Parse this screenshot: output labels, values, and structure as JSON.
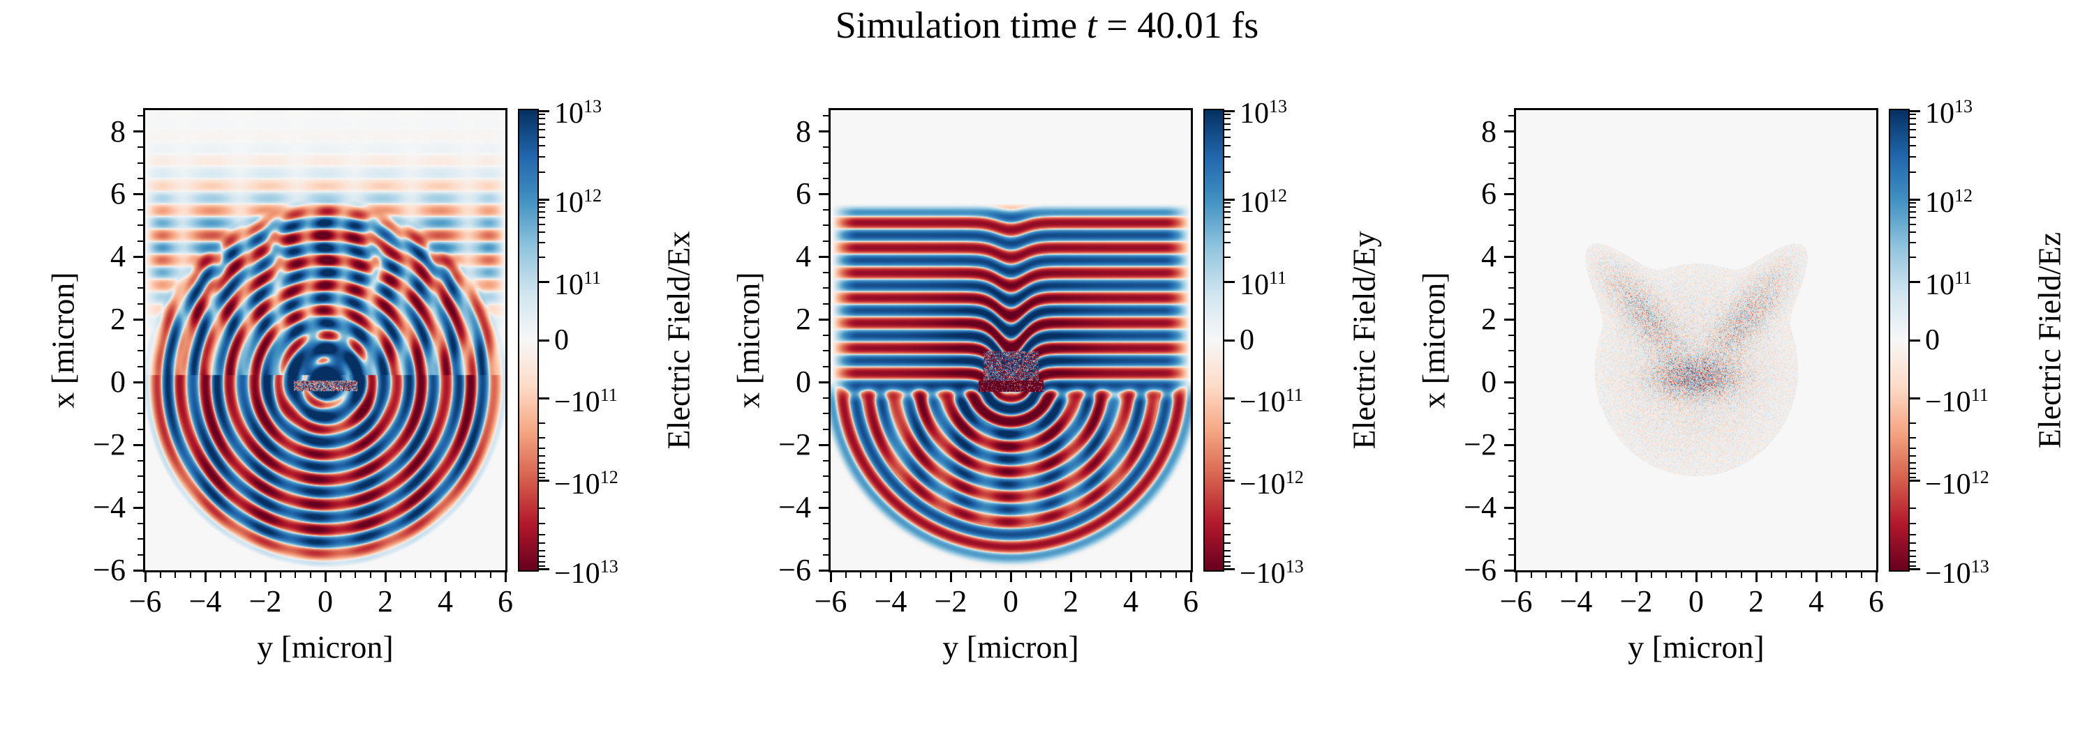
{
  "title": {
    "prefix": "Simulation time ",
    "variable": "t",
    "suffix": " = 40.01 fs",
    "time_fs": 40.01
  },
  "axes": {
    "xlabel": "y [micron]",
    "ylabel": "x [micron]",
    "xticks": [
      -6,
      -4,
      -2,
      0,
      2,
      4,
      6
    ],
    "yticks": [
      8,
      6,
      4,
      2,
      0,
      -2,
      -4,
      -6
    ],
    "xlim": [
      -6,
      6
    ],
    "ylim": [
      -6,
      8.68
    ],
    "minor_step": 0.5
  },
  "colorbar": {
    "tick_labels": [
      "10^13",
      "10^12",
      "10^11",
      "0",
      "-10^11",
      "-10^12",
      "-10^13"
    ],
    "tick_positions": [
      0,
      0.194,
      0.373,
      0.5,
      0.627,
      0.806,
      1
    ]
  },
  "panels": [
    {
      "id": "Ex",
      "colorbar_label": "Electric Field/Ex"
    },
    {
      "id": "Ey",
      "colorbar_label": "Electric Field/Ey"
    },
    {
      "id": "Ez",
      "colorbar_label": "Electric Field/Ez"
    }
  ],
  "colors": {
    "background": "#ffffff",
    "panel_bg": "#f7f7f7",
    "spine": "#000000",
    "text": "#000000",
    "colormap_rdbu": [
      "#67001f",
      "#b2182b",
      "#d6604d",
      "#f4a582",
      "#fddbc7",
      "#f7f7f7",
      "#d1e5f0",
      "#92c5de",
      "#4393c3",
      "#2166ac",
      "#053061"
    ]
  },
  "chart_data": [
    {
      "type": "heatmap",
      "field_component": "Ex",
      "colorbar_label": "Electric Field/Ex",
      "xlabel": "y [micron]",
      "ylabel": "x [micron]",
      "xlim": [
        -6,
        6
      ],
      "ylim": [
        -6,
        8.68
      ],
      "x_ticks": [
        -6,
        -4,
        -2,
        0,
        2,
        4,
        6
      ],
      "y_ticks": [
        8,
        6,
        4,
        2,
        0,
        -2,
        -4,
        -6
      ],
      "scale": "symlog",
      "linthresh": 100000000000.0,
      "vmin": -10000000000000.0,
      "vmax": 10000000000000.0,
      "colorbar_ticks": [
        10000000000000.0,
        1000000000000.0,
        100000000000.0,
        0,
        -100000000000.0,
        -1000000000000.0,
        -10000000000000.0
      ],
      "colormap": "RdBu",
      "description": "Concentric alternating red/blue wavefronts of ~0.8 micron wavelength radiating from the laser-target interaction point at the origin; upper half breaks into bead-like patches, lower half shows cleaner semicircular rings; dark blue core around the speckled target bar; waves fade beyond radius ~5.9 micron.",
      "wavelength_micron": 0.8,
      "wave_radius_micron": 5.9,
      "ring_phase": -0.79,
      "target_region": {
        "x": [
          -0.28,
          0.05
        ],
        "y": [
          -1.06,
          1.06
        ]
      }
    },
    {
      "type": "heatmap",
      "field_component": "Ey",
      "colorbar_label": "Electric Field/Ey",
      "xlabel": "y [micron]",
      "ylabel": "x [micron]",
      "xlim": [
        -6,
        6
      ],
      "ylim": [
        -6,
        8.68
      ],
      "x_ticks": [
        -6,
        -4,
        -2,
        0,
        2,
        4,
        6
      ],
      "y_ticks": [
        8,
        6,
        4,
        2,
        0,
        -2,
        -4,
        -6
      ],
      "scale": "symlog",
      "linthresh": 100000000000.0,
      "vmin": -10000000000000.0,
      "vmax": 10000000000000.0,
      "colorbar_ticks": [
        10000000000000.0,
        1000000000000.0,
        100000000000.0,
        0,
        -100000000000.0,
        -1000000000000.0,
        -10000000000000.0
      ],
      "colormap": "RdBu",
      "description": "Incoming laser: horizontal red/blue stripes of ~0.8 micron period filling the upper half with a V-shaped indentation above the target at y=0; solid dark-red speckled target bar near x=0; reflected/transmitted semicircular wavefronts expanding below the target down to radius ~5.9 micron, saturated near the axis and breaking into patches at mid radii.",
      "wavelength_micron": 0.8,
      "stripe_phase": 2.356,
      "ring_phase": 1.178,
      "dip_depth_micron": 1.15,
      "dip_width_micron": 0.65,
      "wave_radius_micron": 5.9,
      "target_region": {
        "x": [
          -0.3,
          0.05
        ],
        "y": [
          -1.08,
          1.08
        ]
      }
    },
    {
      "type": "heatmap",
      "field_component": "Ez",
      "colorbar_label": "Electric Field/Ez",
      "xlabel": "y [micron]",
      "ylabel": "x [micron]",
      "xlim": [
        -6,
        6
      ],
      "ylim": [
        -6,
        8.68
      ],
      "x_ticks": [
        -6,
        -4,
        -2,
        0,
        2,
        4,
        6
      ],
      "y_ticks": [
        8,
        6,
        4,
        2,
        0,
        -2,
        -4,
        -6
      ],
      "scale": "symlog",
      "linthresh": 100000000000.0,
      "vmin": -10000000000000.0,
      "vmax": 10000000000000.0,
      "colorbar_ticks": [
        10000000000000.0,
        1000000000000.0,
        100000000000.0,
        0,
        -100000000000.0,
        -1000000000000.0,
        -10000000000000.0
      ],
      "colormap": "RdBu",
      "description": "Out-of-plane field is near zero everywhere (pale background) except weak moth-shaped speckle noise around the target: a dense blue/red speckle bar at the origin along y in [-1,1], two diagonal wing-shaped speckle clouds reaching x~3.5 at |y|~1.5-2.5, and a faint circular noise halo of radius ~3.",
      "speckle_bar": {
        "x_center": 0.15,
        "y_halfwidth": 1.1
      },
      "wing_reach_micron": 3.5,
      "halo_radius_micron": 2.8
    }
  ]
}
